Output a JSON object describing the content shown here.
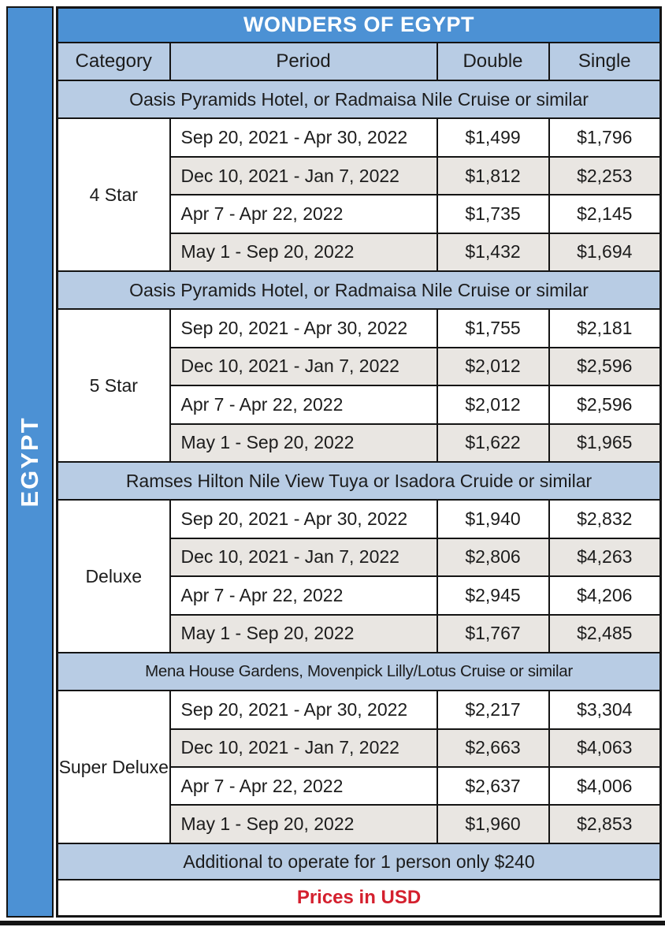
{
  "sidebar": {
    "label": "EGYPT"
  },
  "table": {
    "title": "WONDERS OF EGYPT",
    "columns": {
      "category": "Category",
      "period": "Period",
      "double": "Double",
      "single": "Single"
    },
    "sections": [
      {
        "category": "4 Star",
        "hotels": "Oasis Pyramids Hotel, or Radmaisa Nile Cruise or similar",
        "rows": [
          {
            "period": "Sep 20, 2021 - Apr 30, 2022",
            "double": "$1,499",
            "single": "$1,796"
          },
          {
            "period": "Dec 10, 2021 - Jan 7, 2022",
            "double": "$1,812",
            "single": "$2,253"
          },
          {
            "period": "Apr 7 - Apr 22, 2022",
            "double": "$1,735",
            "single": "$2,145"
          },
          {
            "period": "May 1 - Sep 20, 2022",
            "double": "$1,432",
            "single": "$1,694"
          }
        ]
      },
      {
        "category": "5 Star",
        "hotels": "Oasis Pyramids Hotel, or Radmaisa Nile Cruise or similar",
        "rows": [
          {
            "period": "Sep 20, 2021 - Apr 30, 2022",
            "double": "$1,755",
            "single": "$2,181"
          },
          {
            "period": "Dec 10, 2021 - Jan 7, 2022",
            "double": "$2,012",
            "single": "$2,596"
          },
          {
            "period": "Apr 7 - Apr 22, 2022",
            "double": "$2,012",
            "single": "$2,596"
          },
          {
            "period": "May 1 - Sep 20, 2022",
            "double": "$1,622",
            "single": "$1,965"
          }
        ]
      },
      {
        "category": "Deluxe",
        "hotels": "Ramses Hilton Nile View Tuya or Isadora Cruide or similar",
        "rows": [
          {
            "period": "Sep 20, 2021 - Apr 30, 2022",
            "double": "$1,940",
            "single": "$2,832"
          },
          {
            "period": "Dec 10, 2021 - Jan 7, 2022",
            "double": "$2,806",
            "single": "$4,263"
          },
          {
            "period": "Apr 7 - Apr 22, 2022",
            "double": "$2,945",
            "single": "$4,206"
          },
          {
            "period": "May 1 - Sep 20, 2022",
            "double": "$1,767",
            "single": "$2,485"
          }
        ]
      },
      {
        "category": "Super Deluxe",
        "hotels": "Mena House Gardens, Movenpick Lilly/Lotus Cruise or similar",
        "rows": [
          {
            "period": "Sep 20, 2021 - Apr 30, 2022",
            "double": "$2,217",
            "single": "$3,304"
          },
          {
            "period": "Dec 10, 2021 - Jan 7, 2022",
            "double": "$2,663",
            "single": "$4,063"
          },
          {
            "period": "Apr 7 - Apr 22, 2022",
            "double": "$2,637",
            "single": "$4,006"
          },
          {
            "period": "May 1 - Sep 20, 2022",
            "double": "$1,960",
            "single": "$2,853"
          }
        ]
      }
    ],
    "footer": {
      "note": "Additional to operate for 1 person only $240",
      "currency_note": "Prices in USD"
    }
  },
  "colors": {
    "accent_blue": "#4c91d4",
    "light_blue": "#b8cce4",
    "stripe_gray": "#e9e6e2",
    "border_black": "#141414",
    "footer_red": "#d4202e"
  }
}
